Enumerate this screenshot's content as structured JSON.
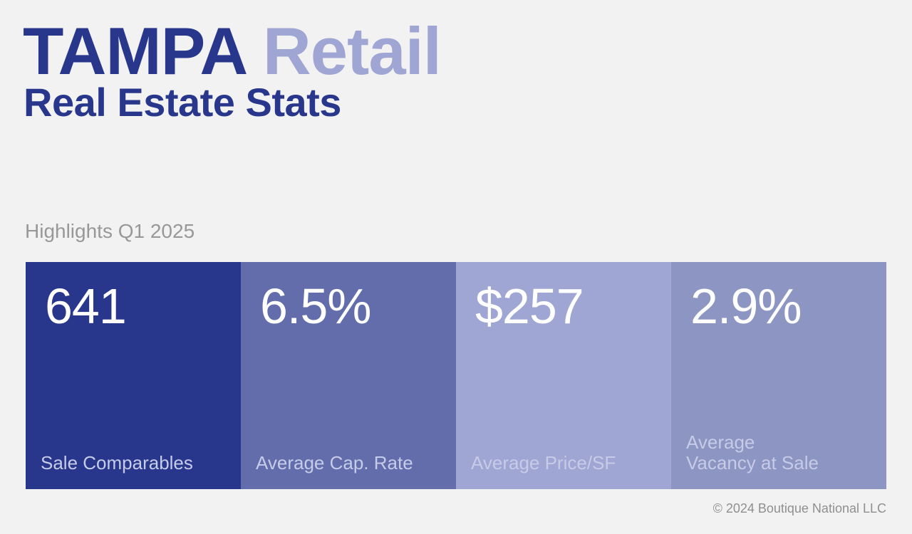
{
  "header": {
    "city": "TAMPA",
    "sector": "Retail",
    "subtitle": "Real Estate Stats"
  },
  "highlights": {
    "label": "Highlights Q1 2025",
    "cards": [
      {
        "value": "641",
        "label": "Sale Comparables",
        "color": "#28378c"
      },
      {
        "value": "6.5%",
        "label": "Average Cap. Rate",
        "color": "#636dab"
      },
      {
        "value": "$257",
        "label": "Average Price/SF",
        "color": "#a0a6d3"
      },
      {
        "value": "2.9%",
        "label": "Average\nVacancy at Sale",
        "color": "#8d95c2"
      }
    ]
  },
  "footer": {
    "copyright": "© 2024 Boutique National LLC"
  }
}
